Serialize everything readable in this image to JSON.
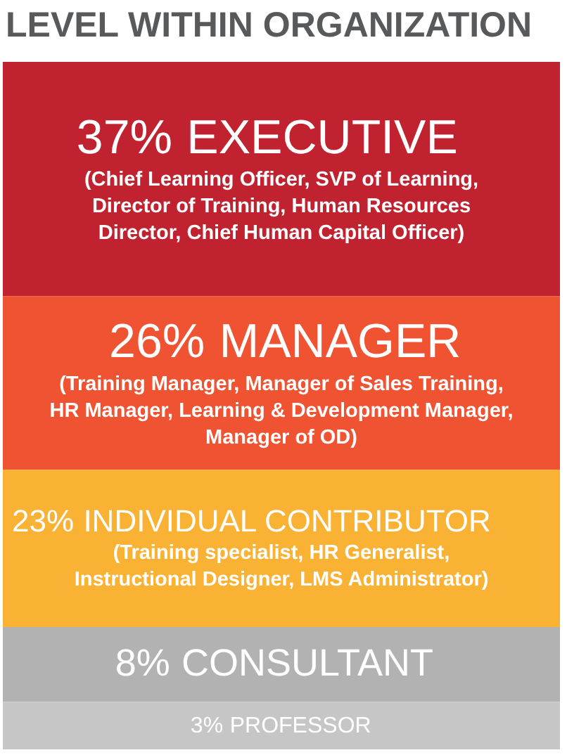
{
  "chart_data": {
    "type": "other",
    "title": "LEVEL WITHIN ORGANIZATION",
    "categories": [
      "EXECUTIVE",
      "MANAGER",
      "INDIVIDUAL CONTRIBUTOR",
      "CONSULTANT",
      "PROFESSOR"
    ],
    "values": [
      37,
      26,
      23,
      8,
      3
    ],
    "value_labels": [
      "37%",
      "26%",
      "23%",
      "8%",
      "3%"
    ],
    "colors": [
      "#c0222f",
      "#ef5331",
      "#f9b233",
      "#b2b2b2",
      "#c6c6c6"
    ],
    "annotations": [
      "(Chief Learning Officer, SVP of Learning, Director of Training, Human Resources Director, Chief Human Capital Officer)",
      "(Training Manager, Manager of Sales Training, HR Manager, Learning & Development Manager, Manager of OD)",
      "(Training specialist, HR Generalist, Instructional Designer, LMS Administrator)"
    ]
  }
}
